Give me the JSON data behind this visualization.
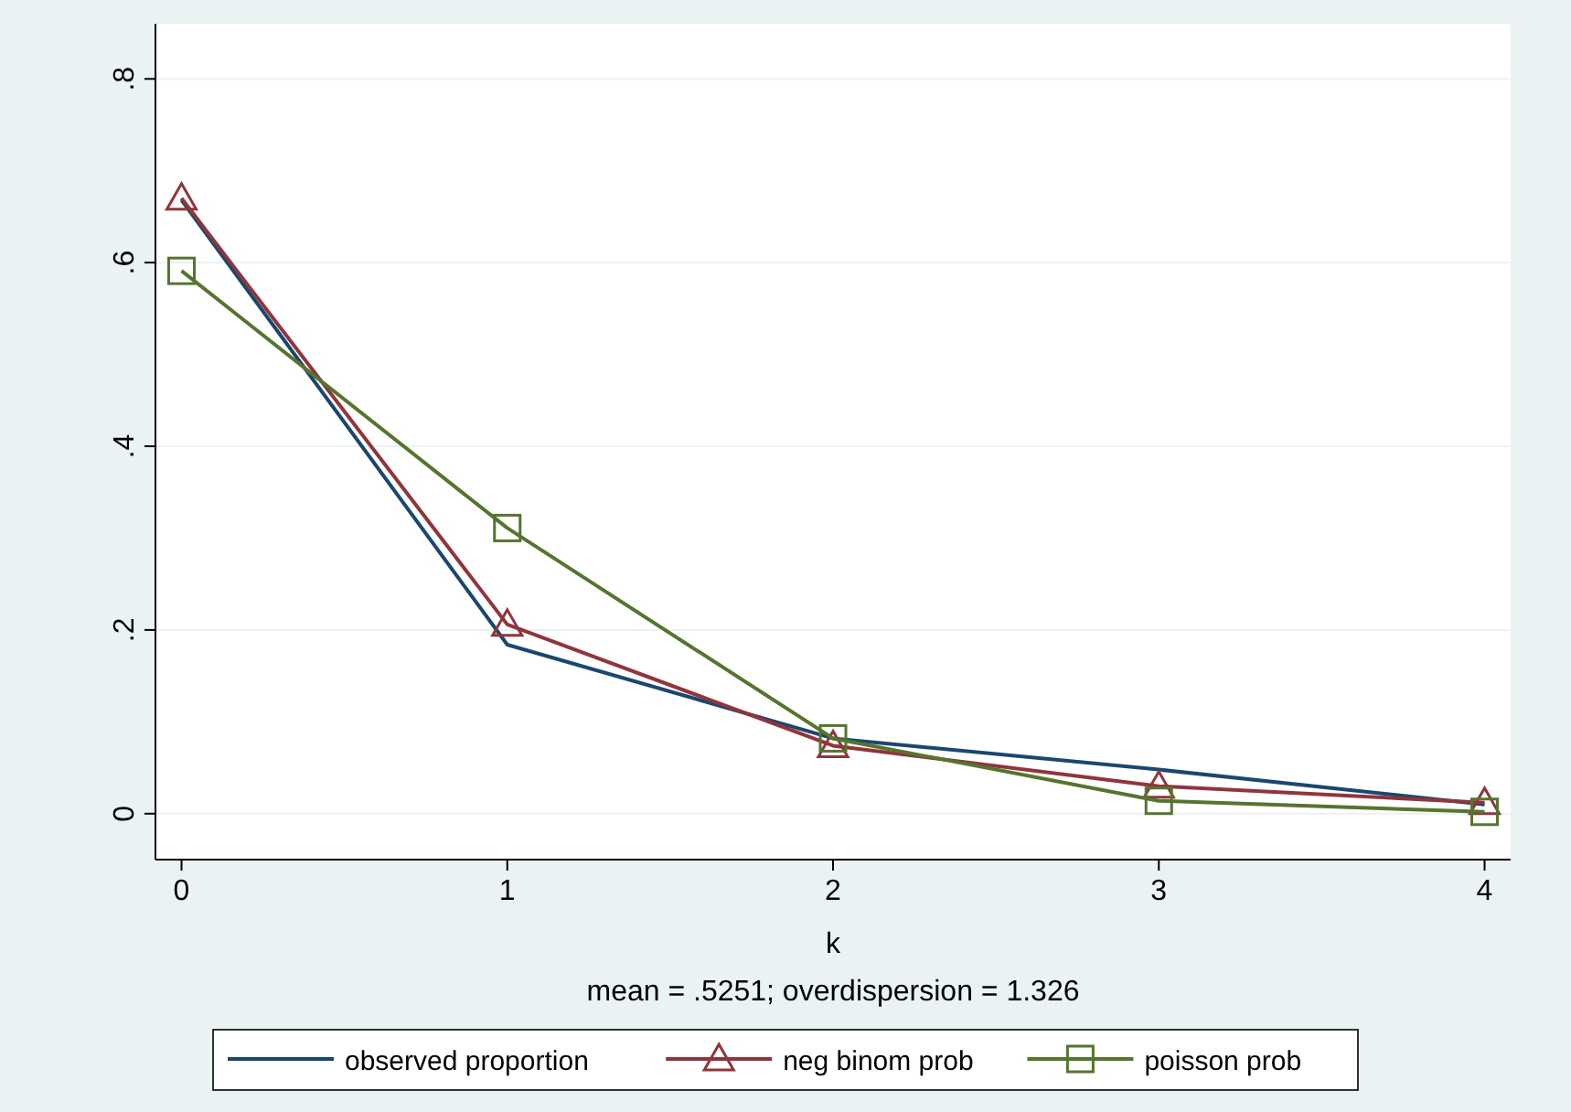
{
  "chart_data": {
    "type": "line",
    "xlabel": "k",
    "annotations": [
      "mean = .5251; overdispersion = 1.326"
    ],
    "x": [
      0,
      1,
      2,
      3,
      4
    ],
    "series": [
      {
        "name": "observed proportion",
        "color": "#1a476f",
        "marker": "none",
        "values": [
          0.668,
          0.184,
          0.082,
          0.048,
          0.01
        ]
      },
      {
        "name": "neg binom prob",
        "color": "#90353b",
        "marker": "triangle",
        "values": [
          0.67,
          0.206,
          0.074,
          0.03,
          0.012
        ]
      },
      {
        "name": "poisson prob",
        "color": "#55752f",
        "marker": "square",
        "values": [
          0.591,
          0.311,
          0.082,
          0.014,
          0.002
        ]
      }
    ],
    "xlim": [
      -0.08,
      4.08
    ],
    "ylim": [
      -0.05,
      0.86
    ],
    "xticks": [
      0,
      1,
      2,
      3,
      4
    ],
    "yticks": [
      0,
      {
        "value": 0.2,
        "label": ".2"
      },
      {
        "value": 0.4,
        "label": ".4"
      },
      {
        "value": 0.6,
        "label": ".6"
      },
      {
        "value": 0.8,
        "label": ".8"
      }
    ],
    "grid": "y",
    "legend": "bottom",
    "line_style": "solid"
  }
}
